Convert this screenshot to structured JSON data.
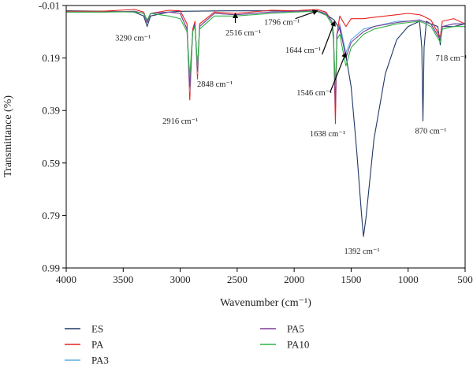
{
  "chart_data": {
    "type": "line",
    "title": "",
    "xlabel": "Wavenumber (cm⁻¹)",
    "ylabel": "Transmittance (%)",
    "xlim": [
      4000,
      500
    ],
    "ylim": [
      -0.01,
      0.99
    ],
    "x_reversed": true,
    "y_inverted": true,
    "x_ticks": [
      "4000",
      "3500",
      "3000",
      "2500",
      "2000",
      "1500",
      "1000",
      "500"
    ],
    "y_ticks": [
      "-0.01",
      "0.19",
      "0.39",
      "0.59",
      "0.79",
      "0.99"
    ],
    "grid": false,
    "legend_position": "bottom",
    "series": [
      {
        "name": "ES",
        "color": "#1f3864",
        "points": [
          [
            4000,
            0.01
          ],
          [
            3600,
            0.012
          ],
          [
            3400,
            0.015
          ],
          [
            3320,
            0.03
          ],
          [
            3290,
            0.07
          ],
          [
            3260,
            0.03
          ],
          [
            3100,
            0.015
          ],
          [
            3000,
            0.012
          ],
          [
            2600,
            0.01
          ],
          [
            2200,
            0.01
          ],
          [
            1900,
            0.01
          ],
          [
            1800,
            0.012
          ],
          [
            1700,
            0.03
          ],
          [
            1650,
            0.045
          ],
          [
            1600,
            0.08
          ],
          [
            1550,
            0.17
          ],
          [
            1500,
            0.3
          ],
          [
            1450,
            0.55
          ],
          [
            1410,
            0.78
          ],
          [
            1392,
            0.87
          ],
          [
            1370,
            0.8
          ],
          [
            1300,
            0.5
          ],
          [
            1200,
            0.25
          ],
          [
            1100,
            0.12
          ],
          [
            1000,
            0.07
          ],
          [
            900,
            0.05
          ],
          [
            880,
            0.15
          ],
          [
            870,
            0.43
          ],
          [
            860,
            0.15
          ],
          [
            840,
            0.05
          ],
          [
            800,
            0.06
          ],
          [
            740,
            0.07
          ],
          [
            718,
            0.14
          ],
          [
            700,
            0.07
          ],
          [
            600,
            0.07
          ],
          [
            500,
            0.06
          ]
        ]
      },
      {
        "name": "PA",
        "color": "#e8231f",
        "points": [
          [
            4000,
            0.012
          ],
          [
            3700,
            0.012
          ],
          [
            3400,
            0.005
          ],
          [
            3320,
            0.015
          ],
          [
            3290,
            0.05
          ],
          [
            3260,
            0.02
          ],
          [
            3100,
            0.008
          ],
          [
            3000,
            0.01
          ],
          [
            2940,
            0.06
          ],
          [
            2916,
            0.35
          ],
          [
            2890,
            0.08
          ],
          [
            2870,
            0.05
          ],
          [
            2848,
            0.27
          ],
          [
            2830,
            0.06
          ],
          [
            2700,
            0.015
          ],
          [
            2516,
            0.02
          ],
          [
            2200,
            0.008
          ],
          [
            2000,
            0.01
          ],
          [
            1800,
            0.005
          ],
          [
            1720,
            0.015
          ],
          [
            1670,
            0.05
          ],
          [
            1655,
            0.1
          ],
          [
            1638,
            0.44
          ],
          [
            1625,
            0.1
          ],
          [
            1600,
            0.03
          ],
          [
            1546,
            0.07
          ],
          [
            1500,
            0.04
          ],
          [
            1392,
            0.04
          ],
          [
            1300,
            0.035
          ],
          [
            1100,
            0.025
          ],
          [
            1000,
            0.02
          ],
          [
            900,
            0.025
          ],
          [
            870,
            0.03
          ],
          [
            800,
            0.045
          ],
          [
            718,
            0.11
          ],
          [
            700,
            0.05
          ],
          [
            600,
            0.04
          ],
          [
            500,
            0.06
          ]
        ]
      },
      {
        "name": "PA3",
        "color": "#5dade2",
        "points": [
          [
            4000,
            0.015
          ],
          [
            3700,
            0.015
          ],
          [
            3400,
            0.012
          ],
          [
            3320,
            0.02
          ],
          [
            3290,
            0.055
          ],
          [
            3260,
            0.02
          ],
          [
            3100,
            0.015
          ],
          [
            3000,
            0.02
          ],
          [
            2940,
            0.08
          ],
          [
            2916,
            0.32
          ],
          [
            2890,
            0.09
          ],
          [
            2870,
            0.06
          ],
          [
            2848,
            0.25
          ],
          [
            2830,
            0.07
          ],
          [
            2700,
            0.02
          ],
          [
            2516,
            0.025
          ],
          [
            2200,
            0.015
          ],
          [
            2000,
            0.012
          ],
          [
            1800,
            0.01
          ],
          [
            1720,
            0.02
          ],
          [
            1670,
            0.05
          ],
          [
            1655,
            0.1
          ],
          [
            1638,
            0.36
          ],
          [
            1625,
            0.1
          ],
          [
            1600,
            0.06
          ],
          [
            1546,
            0.17
          ],
          [
            1500,
            0.12
          ],
          [
            1392,
            0.08
          ],
          [
            1300,
            0.07
          ],
          [
            1100,
            0.05
          ],
          [
            1000,
            0.05
          ],
          [
            900,
            0.045
          ],
          [
            870,
            0.05
          ],
          [
            800,
            0.06
          ],
          [
            718,
            0.12
          ],
          [
            700,
            0.07
          ],
          [
            600,
            0.06
          ],
          [
            500,
            0.06
          ]
        ]
      },
      {
        "name": "PA5",
        "color": "#7d3c98",
        "points": [
          [
            4000,
            0.015
          ],
          [
            3700,
            0.015
          ],
          [
            3400,
            0.012
          ],
          [
            3320,
            0.02
          ],
          [
            3290,
            0.055
          ],
          [
            3260,
            0.02
          ],
          [
            3100,
            0.015
          ],
          [
            3000,
            0.02
          ],
          [
            2940,
            0.08
          ],
          [
            2916,
            0.3
          ],
          [
            2890,
            0.09
          ],
          [
            2870,
            0.06
          ],
          [
            2848,
            0.24
          ],
          [
            2830,
            0.07
          ],
          [
            2700,
            0.02
          ],
          [
            2516,
            0.025
          ],
          [
            2200,
            0.015
          ],
          [
            2000,
            0.012
          ],
          [
            1800,
            0.01
          ],
          [
            1720,
            0.02
          ],
          [
            1670,
            0.05
          ],
          [
            1655,
            0.1
          ],
          [
            1638,
            0.38
          ],
          [
            1625,
            0.1
          ],
          [
            1600,
            0.07
          ],
          [
            1546,
            0.19
          ],
          [
            1500,
            0.13
          ],
          [
            1392,
            0.09
          ],
          [
            1300,
            0.07
          ],
          [
            1100,
            0.055
          ],
          [
            1000,
            0.05
          ],
          [
            900,
            0.045
          ],
          [
            870,
            0.05
          ],
          [
            800,
            0.06
          ],
          [
            718,
            0.12
          ],
          [
            700,
            0.07
          ],
          [
            600,
            0.06
          ],
          [
            500,
            0.06
          ]
        ]
      },
      {
        "name": "PA10",
        "color": "#2fb344",
        "points": [
          [
            4000,
            0.015
          ],
          [
            3700,
            0.015
          ],
          [
            3400,
            0.014
          ],
          [
            3320,
            0.02
          ],
          [
            3290,
            0.045
          ],
          [
            3260,
            0.02
          ],
          [
            3100,
            0.03
          ],
          [
            3000,
            0.04
          ],
          [
            2940,
            0.09
          ],
          [
            2916,
            0.26
          ],
          [
            2890,
            0.09
          ],
          [
            2870,
            0.07
          ],
          [
            2848,
            0.22
          ],
          [
            2830,
            0.08
          ],
          [
            2700,
            0.03
          ],
          [
            2516,
            0.03
          ],
          [
            2200,
            0.02
          ],
          [
            2000,
            0.015
          ],
          [
            1800,
            0.012
          ],
          [
            1720,
            0.025
          ],
          [
            1670,
            0.06
          ],
          [
            1655,
            0.12
          ],
          [
            1638,
            0.3
          ],
          [
            1625,
            0.12
          ],
          [
            1600,
            0.1
          ],
          [
            1546,
            0.22
          ],
          [
            1500,
            0.15
          ],
          [
            1392,
            0.1
          ],
          [
            1300,
            0.08
          ],
          [
            1100,
            0.06
          ],
          [
            1000,
            0.055
          ],
          [
            900,
            0.05
          ],
          [
            870,
            0.055
          ],
          [
            800,
            0.07
          ],
          [
            718,
            0.13
          ],
          [
            700,
            0.08
          ],
          [
            600,
            0.07
          ],
          [
            500,
            0.07
          ]
        ]
      }
    ],
    "annotations": [
      {
        "text": "3290 cm⁻¹",
        "x": 3290,
        "y": 0.07
      },
      {
        "text": "2848 cm⁻¹",
        "x": 2848,
        "y": 0.27
      },
      {
        "text": "2916 cm⁻¹",
        "x": 2916,
        "y": 0.35
      },
      {
        "text": "2516 cm⁻¹",
        "x": 2516,
        "y": 0.02,
        "arrow": true
      },
      {
        "text": "1796 cm⁻¹",
        "x": 1796,
        "y": 0.01,
        "arrow": true
      },
      {
        "text": "1644 cm⁻¹",
        "x": 1644,
        "y": 0.05,
        "arrow": true
      },
      {
        "text": "1546 cm⁻¹",
        "x": 1546,
        "y": 0.17,
        "arrow": true
      },
      {
        "text": "1638 cm⁻¹",
        "x": 1638,
        "y": 0.44
      },
      {
        "text": "1392 cm⁻¹",
        "x": 1392,
        "y": 0.87
      },
      {
        "text": "870 cm⁻¹",
        "x": 870,
        "y": 0.43
      },
      {
        "text": "718 cm⁻¹",
        "x": 718,
        "y": 0.14
      }
    ]
  }
}
